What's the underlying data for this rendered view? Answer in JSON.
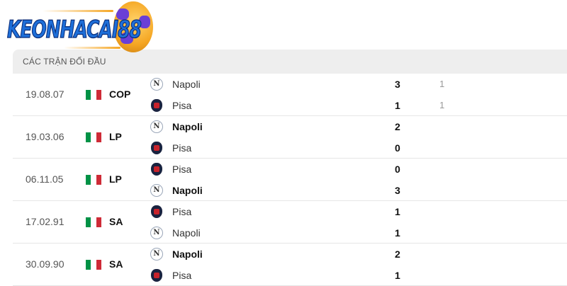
{
  "logo": {
    "text": "KEONHACAI88"
  },
  "section": {
    "title": "CÁC TRẬN ĐỐI ĐẦU"
  },
  "colors": {
    "header_bg": "#eeeeee",
    "flag": [
      "#009246",
      "#ffffff",
      "#ce2b37"
    ]
  },
  "matches": [
    {
      "date": "19.08.07",
      "country": "Italy",
      "competition": "COP",
      "home": {
        "name": "Napoli",
        "crest": "napoli-crest",
        "winner": false,
        "score": "3",
        "extra": "1"
      },
      "away": {
        "name": "Pisa",
        "crest": "pisa-crest",
        "winner": false,
        "score": "1",
        "extra": "1"
      }
    },
    {
      "date": "19.03.06",
      "country": "Italy",
      "competition": "LP",
      "home": {
        "name": "Napoli",
        "crest": "napoli-crest",
        "winner": true,
        "score": "2"
      },
      "away": {
        "name": "Pisa",
        "crest": "pisa-crest",
        "winner": false,
        "score": "0"
      }
    },
    {
      "date": "06.11.05",
      "country": "Italy",
      "competition": "LP",
      "home": {
        "name": "Pisa",
        "crest": "pisa-crest",
        "winner": false,
        "score": "0"
      },
      "away": {
        "name": "Napoli",
        "crest": "napoli-crest",
        "winner": true,
        "score": "3"
      }
    },
    {
      "date": "17.02.91",
      "country": "Italy",
      "competition": "SA",
      "home": {
        "name": "Pisa",
        "crest": "pisa-crest",
        "winner": false,
        "score": "1"
      },
      "away": {
        "name": "Napoli",
        "crest": "napoli-crest",
        "winner": false,
        "score": "1"
      }
    },
    {
      "date": "30.09.90",
      "country": "Italy",
      "competition": "SA",
      "home": {
        "name": "Napoli",
        "crest": "napoli-crest",
        "winner": true,
        "score": "2"
      },
      "away": {
        "name": "Pisa",
        "crest": "pisa-crest",
        "winner": false,
        "score": "1"
      }
    }
  ]
}
